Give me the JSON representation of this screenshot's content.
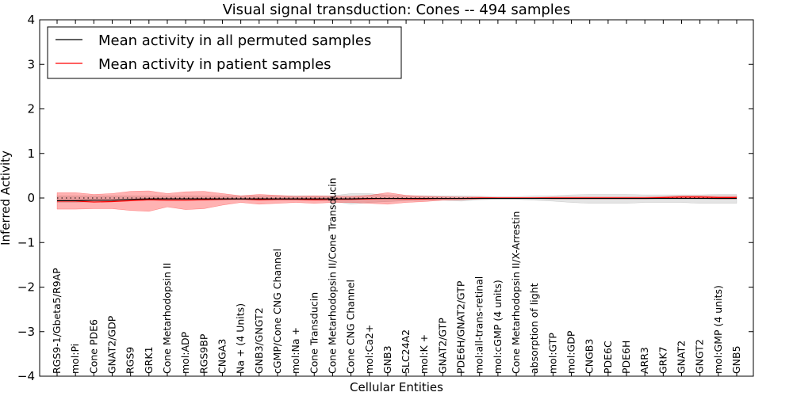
{
  "chart_data": {
    "type": "line",
    "title": "Visual signal transduction: Cones -- 494 samples",
    "xlabel": "Cellular Entities",
    "ylabel": "Inferred Activity",
    "ylim": [
      -4,
      4
    ],
    "yticks": [
      4,
      3,
      2,
      1,
      0,
      -1,
      -2,
      -3,
      -4
    ],
    "ytick_labels": [
      "4",
      "3",
      "2",
      "1",
      "0",
      "−1",
      "−2",
      "−3",
      "−4"
    ],
    "legend_position": "top-left",
    "categories": [
      "RGS9-1/Gbeta5/R9AP",
      "mol:Pi",
      "Cone PDE6",
      "GNAT2/GDP",
      "RGS9",
      "GRK1",
      "Cone Metarhodopsin II",
      "mol:ADP",
      "RGS9BP",
      "CNGA3",
      "Na + (4 Units)",
      "GNB3/GNGT2",
      "cGMP/Cone CNG Channel",
      "mol:Na +",
      "Cone Transducin",
      "Cone Metarhodopsin II/Cone Transducin",
      "Cone CNG Channel",
      "mol:Ca2+",
      "GNB3",
      "SLC24A2",
      "mol:K +",
      "GNAT2/GTP",
      "PDE6H/GNAT2/GTP",
      "mol:all-trans-retinal",
      "mol:cGMP (4 units)",
      "Cone Metarhodopsin II/X-Arrestin",
      "absorption of light",
      "mol:GTP",
      "mol:GDP",
      "CNGB3",
      "PDE6C",
      "PDE6H",
      "ARR3",
      "GRK7",
      "GNAT2",
      "GNGT2",
      "mol:GMP (4 units)",
      "GNB5"
    ],
    "series": [
      {
        "name": "Mean activity in all permuted samples",
        "color": "#000000",
        "values": [
          -0.06,
          -0.06,
          -0.05,
          -0.05,
          -0.03,
          -0.02,
          -0.02,
          -0.02,
          -0.02,
          -0.02,
          -0.02,
          -0.02,
          -0.02,
          -0.02,
          -0.02,
          -0.02,
          -0.02,
          -0.01,
          -0.01,
          -0.01,
          -0.01,
          -0.01,
          -0.01,
          -0.01,
          -0.01,
          -0.01,
          -0.01,
          -0.01,
          -0.01,
          -0.01,
          -0.01,
          -0.01,
          -0.01,
          -0.01,
          -0.01,
          -0.01,
          -0.01,
          -0.01
        ],
        "band_upper": [
          0.05,
          0.05,
          0.05,
          0.05,
          0.05,
          0.05,
          0.05,
          0.05,
          0.05,
          0.05,
          0.05,
          0.05,
          0.05,
          0.05,
          0.05,
          0.05,
          0.1,
          0.1,
          0.06,
          0.05,
          0.05,
          0.05,
          0.05,
          0.04,
          0.03,
          0.03,
          0.05,
          0.05,
          0.07,
          0.08,
          0.08,
          0.08,
          0.07,
          0.07,
          0.07,
          0.07,
          0.08,
          0.08
        ],
        "band_lower": [
          -0.1,
          -0.1,
          -0.08,
          -0.08,
          -0.06,
          -0.05,
          -0.05,
          -0.05,
          -0.05,
          -0.05,
          -0.05,
          -0.05,
          -0.05,
          -0.05,
          -0.05,
          -0.07,
          -0.14,
          -0.1,
          -0.08,
          -0.06,
          -0.05,
          -0.05,
          -0.07,
          -0.04,
          -0.03,
          -0.03,
          -0.05,
          -0.07,
          -0.1,
          -0.12,
          -0.12,
          -0.12,
          -0.1,
          -0.1,
          -0.1,
          -0.12,
          -0.12,
          -0.12
        ]
      },
      {
        "name": "Mean activity in patient samples",
        "color": "#ff0000",
        "values": [
          -0.07,
          -0.07,
          -0.09,
          -0.08,
          -0.06,
          -0.04,
          -0.05,
          -0.05,
          -0.04,
          -0.03,
          -0.02,
          -0.04,
          -0.03,
          -0.03,
          -0.04,
          -0.03,
          -0.03,
          -0.02,
          -0.01,
          -0.02,
          -0.02,
          -0.01,
          -0.01,
          0.0,
          0.0,
          0.0,
          0.0,
          0.0,
          0.0,
          0.0,
          0.0,
          0.0,
          0.0,
          0.01,
          0.02,
          0.02,
          0.01,
          0.01
        ],
        "band_upper": [
          0.12,
          0.12,
          0.08,
          0.1,
          0.15,
          0.16,
          0.1,
          0.14,
          0.15,
          0.1,
          0.05,
          0.08,
          0.06,
          0.04,
          0.05,
          0.04,
          0.04,
          0.06,
          0.12,
          0.06,
          0.04,
          0.03,
          0.02,
          0.02,
          0.01,
          0.01,
          0.01,
          0.02,
          0.02,
          0.02,
          0.02,
          0.02,
          0.02,
          0.03,
          0.05,
          0.05,
          0.04,
          0.04
        ],
        "band_lower": [
          -0.25,
          -0.25,
          -0.24,
          -0.24,
          -0.28,
          -0.3,
          -0.2,
          -0.26,
          -0.24,
          -0.16,
          -0.1,
          -0.14,
          -0.12,
          -0.1,
          -0.12,
          -0.1,
          -0.1,
          -0.12,
          -0.14,
          -0.1,
          -0.08,
          -0.05,
          -0.04,
          -0.02,
          -0.01,
          -0.01,
          -0.01,
          -0.02,
          -0.02,
          -0.02,
          -0.02,
          -0.02,
          -0.02,
          -0.01,
          -0.01,
          -0.01,
          -0.02,
          -0.02
        ]
      }
    ],
    "reference_line": {
      "y": 0,
      "style": "dotted"
    }
  }
}
